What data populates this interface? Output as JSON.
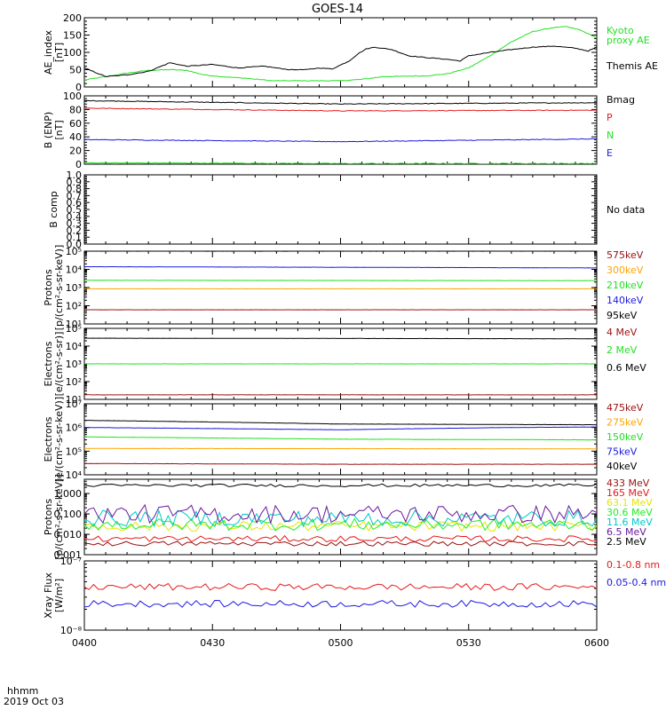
{
  "title": "GOES-14",
  "footer": {
    "format": "hhmm",
    "date": "2019 Oct 03"
  },
  "colors": {
    "black": "#000000",
    "red": "#e41a1c",
    "green": "#22e022",
    "blue": "#1a1ae0",
    "orange": "#ffa500",
    "darkred": "#9b1010",
    "cyan": "#00c8c8",
    "yellow": "#e6e600",
    "purple": "#6a1a9a",
    "brightgreen": "#22ee22",
    "midblue": "#2266ee"
  },
  "chart_data": [
    {
      "id": "ae",
      "type": "line",
      "ylabel": [
        "AE_index",
        "[nT]"
      ],
      "yscale": "linear",
      "ylim": [
        0,
        200
      ],
      "yticks": [
        0,
        50,
        100,
        150,
        200
      ],
      "ytick_labels": [
        "0",
        "50",
        "100",
        "150",
        "200"
      ],
      "series": [
        {
          "name": "Kyoto\nproxy AE",
          "color": "#22e022",
          "kind": "knots",
          "points": [
            [
              0,
              20
            ],
            [
              5,
              30
            ],
            [
              10,
              40
            ],
            [
              15,
              48
            ],
            [
              20,
              50
            ],
            [
              24,
              48
            ],
            [
              28,
              35
            ],
            [
              32,
              30
            ],
            [
              38,
              25
            ],
            [
              44,
              18
            ],
            [
              50,
              18
            ],
            [
              56,
              18
            ],
            [
              60,
              18
            ],
            [
              65,
              22
            ],
            [
              70,
              30
            ],
            [
              80,
              32
            ],
            [
              85,
              38
            ],
            [
              90,
              55
            ],
            [
              95,
              90
            ],
            [
              100,
              130
            ],
            [
              105,
              160
            ],
            [
              110,
              172
            ],
            [
              113,
              174
            ],
            [
              116,
              165
            ],
            [
              120,
              142
            ]
          ]
        },
        {
          "name": "Themis AE",
          "color": "#000000",
          "kind": "knots",
          "points": [
            [
              0,
              55
            ],
            [
              3,
              40
            ],
            [
              5,
              30
            ],
            [
              10,
              35
            ],
            [
              15,
              45
            ],
            [
              20,
              70
            ],
            [
              24,
              60
            ],
            [
              30,
              65
            ],
            [
              36,
              55
            ],
            [
              42,
              60
            ],
            [
              48,
              50
            ],
            [
              52,
              50
            ],
            [
              55,
              55
            ],
            [
              58,
              52
            ],
            [
              62,
              75
            ],
            [
              64,
              95
            ],
            [
              66,
              110
            ],
            [
              68,
              115
            ],
            [
              72,
              108
            ],
            [
              76,
              90
            ],
            [
              80,
              85
            ],
            [
              85,
              80
            ],
            [
              88,
              75
            ],
            [
              90,
              90
            ],
            [
              95,
              100
            ],
            [
              100,
              108
            ],
            [
              105,
              115
            ],
            [
              110,
              118
            ],
            [
              115,
              112
            ],
            [
              118,
              104
            ],
            [
              120,
              115
            ]
          ]
        }
      ]
    },
    {
      "id": "bfield",
      "type": "line",
      "ylabel": [
        "B (ENP)",
        "[nT]"
      ],
      "yscale": "linear",
      "ylim": [
        0,
        100
      ],
      "yticks": [
        0,
        20,
        40,
        60,
        80,
        100
      ],
      "ytick_labels": [
        "0",
        "20",
        "40",
        "60",
        "80",
        "100"
      ],
      "series": [
        {
          "name": "Bmag",
          "color": "#000000",
          "kind": "knots",
          "points": [
            [
              0,
              93
            ],
            [
              60,
              88
            ],
            [
              120,
              90
            ]
          ]
        },
        {
          "name": "P",
          "color": "#e41a1c",
          "kind": "knots",
          "points": [
            [
              0,
              82
            ],
            [
              60,
              78
            ],
            [
              120,
              79
            ]
          ]
        },
        {
          "name": "N",
          "color": "#22e022",
          "kind": "knots",
          "points": [
            [
              0,
              2
            ],
            [
              60,
              1
            ],
            [
              120,
              1
            ]
          ]
        },
        {
          "name": "E",
          "color": "#1a1ae0",
          "kind": "knots",
          "points": [
            [
              0,
              36
            ],
            [
              60,
              33
            ],
            [
              120,
              37
            ]
          ]
        }
      ]
    },
    {
      "id": "bcomp",
      "type": "line",
      "ylabel": [
        "B comp"
      ],
      "yscale": "linear",
      "ylim": [
        0,
        1
      ],
      "yticks": [
        0,
        0.1,
        0.2,
        0.3,
        0.4,
        0.5,
        0.6,
        0.7,
        0.8,
        0.9,
        1.0
      ],
      "ytick_labels": [
        "0.0",
        "0.1",
        "0.2",
        "0.3",
        "0.4",
        "0.5",
        "0.6",
        "0.7",
        "0.8",
        "0.9",
        "1.0"
      ],
      "series": [],
      "legend_text": [
        "No data"
      ]
    },
    {
      "id": "protons1",
      "type": "line",
      "ylabel": [
        "Protons",
        "[p/(cm²-s-sr-keV)]"
      ],
      "yscale": "log",
      "ylim": [
        10,
        100000
      ],
      "yticks": [
        10,
        100,
        1000,
        10000,
        100000
      ],
      "ytick_labels": [
        "10¹",
        "10²",
        "10³",
        "10⁴",
        "10⁵"
      ],
      "series": [
        {
          "name": "575keV",
          "color": "#9b1010",
          "kind": "knots",
          "points": [
            [
              0,
              60
            ],
            [
              120,
              60
            ]
          ]
        },
        {
          "name": "300keV",
          "color": "#ffa500",
          "kind": "knots",
          "points": [
            [
              0,
              850
            ],
            [
              120,
              850
            ]
          ]
        },
        {
          "name": "210keV",
          "color": "#22e022",
          "kind": "knots",
          "points": [
            [
              0,
              2500
            ],
            [
              120,
              2400
            ]
          ]
        },
        {
          "name": "140keV",
          "color": "#1a1ae0",
          "kind": "knots",
          "points": [
            [
              0,
              14000
            ],
            [
              120,
              12000
            ]
          ]
        },
        {
          "name": "95keV",
          "color": "#000000",
          "kind": "knots",
          "points": [
            [
              0,
              100000
            ],
            [
              120,
              100000
            ]
          ]
        }
      ]
    },
    {
      "id": "electrons1",
      "type": "line",
      "ylabel": [
        "Electrons",
        "[e/(cm²-s-sr)]"
      ],
      "yscale": "log",
      "ylim": [
        10,
        100000
      ],
      "yticks": [
        10,
        100,
        1000,
        10000,
        100000
      ],
      "ytick_labels": [
        "10¹",
        "10²",
        "10³",
        "10⁴",
        "10⁵"
      ],
      "series": [
        {
          "name": "4 MeV",
          "color": "#9b1010",
          "kind": "knots",
          "points": [
            [
              0,
              18
            ],
            [
              120,
              18
            ]
          ]
        },
        {
          "name": "2 MeV",
          "color": "#22e022",
          "kind": "knots",
          "points": [
            [
              0,
              1000
            ],
            [
              120,
              1000
            ]
          ]
        },
        {
          "name": "0.6 MeV",
          "color": "#000000",
          "kind": "knots",
          "points": [
            [
              0,
              28000
            ],
            [
              120,
              26000
            ]
          ]
        }
      ]
    },
    {
      "id": "electrons2",
      "type": "line",
      "ylabel": [
        "Electrons",
        "[e/(cm²-s-sr-keV)]"
      ],
      "yscale": "log",
      "ylim": [
        10000,
        10000000
      ],
      "yticks": [
        10000,
        100000,
        1000000,
        10000000
      ],
      "ytick_labels": [
        "10⁴",
        "10⁵",
        "10⁶",
        "10⁷"
      ],
      "series": [
        {
          "name": "475keV",
          "color": "#9b1010",
          "kind": "knots",
          "points": [
            [
              0,
              30000
            ],
            [
              60,
              28000
            ],
            [
              120,
              28000
            ]
          ]
        },
        {
          "name": "275keV",
          "color": "#ffa500",
          "kind": "knots",
          "points": [
            [
              0,
              130000
            ],
            [
              120,
              125000
            ]
          ]
        },
        {
          "name": "150keV",
          "color": "#22e022",
          "kind": "knots",
          "points": [
            [
              0,
              400000
            ],
            [
              60,
              320000
            ],
            [
              120,
              300000
            ]
          ]
        },
        {
          "name": "75keV",
          "color": "#1a1ae0",
          "kind": "knots",
          "points": [
            [
              0,
              1000000
            ],
            [
              60,
              800000
            ],
            [
              100,
              1000000
            ],
            [
              120,
              1050000
            ]
          ]
        },
        {
          "name": "40keV",
          "color": "#000000",
          "kind": "knots",
          "points": [
            [
              0,
              2000000
            ],
            [
              60,
              1400000
            ],
            [
              120,
              1300000
            ]
          ]
        }
      ]
    },
    {
      "id": "protons2",
      "type": "line",
      "ylabel": [
        "Protons",
        "[p/(cm²-s-sr-keV)]"
      ],
      "yscale": "log",
      "ylim": [
        0.001,
        5
      ],
      "yticks": [
        0.001,
        0.01,
        0.1,
        1.0
      ],
      "ytick_labels": [
        "0.001",
        "0.010",
        "0.100",
        "1.000"
      ],
      "series": [
        {
          "name": "433 MeV",
          "color": "#9b1010",
          "kind": "noisy",
          "base": 0.0035,
          "amp": 0.12
        },
        {
          "name": "165 MeV",
          "color": "#e41a1c",
          "kind": "noisy",
          "base": 0.006,
          "amp": 0.15
        },
        {
          "name": "63.1 MeV",
          "color": "#e6e600",
          "kind": "noisy",
          "base": 0.025,
          "amp": 0.25
        },
        {
          "name": "30.6 MeV",
          "color": "#22ee22",
          "kind": "noisy",
          "base": 0.03,
          "amp": 0.3
        },
        {
          "name": "11.6 MeV",
          "color": "#00c8c8",
          "kind": "noisy",
          "base": 0.06,
          "amp": 0.4
        },
        {
          "name": "6.5 MeV",
          "color": "#6a1a9a",
          "kind": "noisy",
          "base": 0.1,
          "amp": 0.45
        },
        {
          "name": "2.5 MeV",
          "color": "#000000",
          "kind": "noisy",
          "base": 2.5,
          "amp": 0.07
        }
      ]
    },
    {
      "id": "xray",
      "type": "line",
      "ylabel": [
        "Xray Flux",
        "[W/m²]"
      ],
      "yscale": "log",
      "ylim": [
        1e-08,
        1e-07
      ],
      "yticks": [
        1e-08,
        1e-07
      ],
      "ytick_labels": [
        "10⁻⁸",
        "10⁻⁷"
      ],
      "series": [
        {
          "name": "0.1-0.8 nm",
          "color": "#e41a1c",
          "kind": "noisy",
          "base": 4.2e-08,
          "amp": 0.05
        },
        {
          "name": "0.05-0.4 nm",
          "color": "#1a1ae0",
          "kind": "noisy",
          "base": 2.4e-08,
          "amp": 0.05
        }
      ]
    }
  ],
  "xaxis": {
    "range_minutes": [
      0,
      120
    ],
    "ticks": [
      0,
      30,
      60,
      90,
      120
    ],
    "tick_labels": [
      "0400",
      "0430",
      "0500",
      "0530",
      "0600"
    ]
  }
}
